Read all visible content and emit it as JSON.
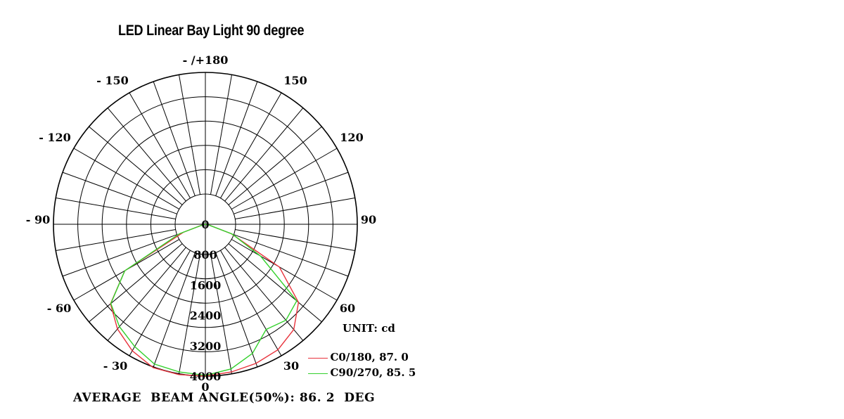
{
  "chart_data": {
    "type": "polar",
    "title": "LED Linear Bay Light 90 degree",
    "unit_label": "UNIT: cd",
    "footer": "AVERAGE  BEAM ANGLE(50%): 86. 2  DEG",
    "angle_labels": [
      {
        "deg": 0,
        "text": "0"
      },
      {
        "deg": 30,
        "text": "30"
      },
      {
        "deg": 60,
        "text": "60"
      },
      {
        "deg": 90,
        "text": "90"
      },
      {
        "deg": 120,
        "text": "120"
      },
      {
        "deg": 150,
        "text": "150"
      },
      {
        "deg": 180,
        "text": "- /+180"
      },
      {
        "deg": -150,
        "text": "- 150"
      },
      {
        "deg": -120,
        "text": "- 120"
      },
      {
        "deg": -90,
        "text": "- 90"
      },
      {
        "deg": -60,
        "text": "- 60"
      },
      {
        "deg": -30,
        "text": "- 30"
      }
    ],
    "radial_labels": [
      {
        "value": 0,
        "text": "0"
      },
      {
        "value": 800,
        "text": "800"
      },
      {
        "value": 1600,
        "text": "1600"
      },
      {
        "value": 2400,
        "text": "2400"
      },
      {
        "value": 3200,
        "text": "3200"
      },
      {
        "value": 4000,
        "text": "4000"
      }
    ],
    "rmax": 4000,
    "angle_gridline_step_deg": 10,
    "series": [
      {
        "name": "C0/180, 87. 0",
        "color": "#e8323c",
        "points": [
          [
            -90,
            0
          ],
          [
            -80,
            60
          ],
          [
            -70,
            620
          ],
          [
            -60,
            2450
          ],
          [
            -50,
            3260
          ],
          [
            -40,
            3600
          ],
          [
            -30,
            3850
          ],
          [
            -20,
            4020
          ],
          [
            -10,
            4020
          ],
          [
            0,
            4000
          ],
          [
            10,
            3950
          ],
          [
            20,
            3900
          ],
          [
            30,
            3820
          ],
          [
            40,
            3620
          ],
          [
            50,
            3200
          ],
          [
            60,
            2250
          ],
          [
            70,
            730
          ],
          [
            80,
            80
          ],
          [
            90,
            0
          ]
        ]
      },
      {
        "name": "C90/270, 85. 5",
        "color": "#33d12c",
        "points": [
          [
            -90,
            0
          ],
          [
            -80,
            50
          ],
          [
            -70,
            730
          ],
          [
            -60,
            2450
          ],
          [
            -50,
            3250
          ],
          [
            -40,
            3520
          ],
          [
            -30,
            3720
          ],
          [
            -20,
            3920
          ],
          [
            -10,
            3950
          ],
          [
            0,
            3980
          ],
          [
            10,
            3870
          ],
          [
            20,
            3620
          ],
          [
            30,
            3200
          ],
          [
            40,
            3300
          ],
          [
            50,
            3140
          ],
          [
            60,
            1680
          ],
          [
            70,
            750
          ],
          [
            80,
            80
          ],
          [
            90,
            0
          ]
        ]
      }
    ]
  }
}
